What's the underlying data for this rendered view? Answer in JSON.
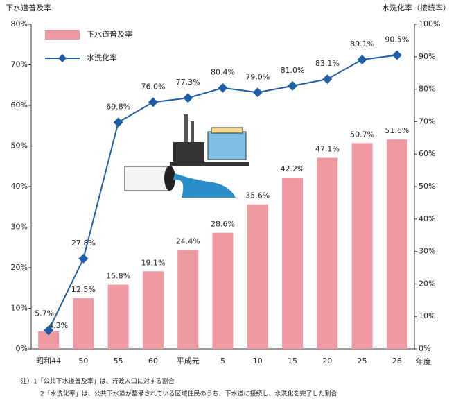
{
  "chart_data": {
    "type": "bar",
    "y_label": "下水道普及率",
    "y2_label": "水洗化率（接続率）",
    "x_label": "年度",
    "categories": [
      "昭和44",
      "50",
      "55",
      "60",
      "平成元",
      "5",
      "10",
      "15",
      "20",
      "25",
      "26"
    ],
    "series": [
      {
        "name": "下水道普及率",
        "type": "bar",
        "color": "#ef9aa2",
        "values": [
          4.3,
          12.5,
          15.8,
          19.1,
          24.4,
          28.6,
          35.6,
          42.2,
          47.1,
          50.7,
          51.6
        ],
        "value_labels": [
          "4.3%",
          "12.5%",
          "15.8%",
          "19.1%",
          "24.4%",
          "28.6%",
          "35.6%",
          "42.2%",
          "47.1%",
          "50.7%",
          "51.6%"
        ]
      },
      {
        "name": "水洗化率",
        "type": "line",
        "axis": "y2",
        "color": "#1f5fa8",
        "values": [
          5.7,
          27.8,
          69.8,
          76.0,
          77.3,
          80.4,
          79.0,
          81.0,
          83.1,
          89.1,
          90.5
        ],
        "value_labels": [
          "5.7%",
          "27.8%",
          "69.8%",
          "76.0%",
          "77.3%",
          "80.4%",
          "79.0%",
          "81.0%",
          "83.1%",
          "89.1%",
          "90.5%"
        ]
      }
    ],
    "ylim": [
      0,
      80
    ],
    "yticks": [
      {
        "value": 0,
        "label": "0%"
      },
      {
        "value": 10,
        "label": "10%"
      },
      {
        "value": 20,
        "label": "20%"
      },
      {
        "value": 30,
        "label": "30%"
      },
      {
        "value": 40,
        "label": "40%"
      },
      {
        "value": 50,
        "label": "50%"
      },
      {
        "value": 60,
        "label": "60%"
      },
      {
        "value": 70,
        "label": "70%"
      },
      {
        "value": 80,
        "label": "80%"
      }
    ],
    "y2lim": [
      0,
      100
    ],
    "y2ticks": [
      {
        "value": 0,
        "label": "0%"
      },
      {
        "value": 10,
        "label": "10%"
      },
      {
        "value": 20,
        "label": "20%"
      },
      {
        "value": 30,
        "label": "30%"
      },
      {
        "value": 40,
        "label": "40%"
      },
      {
        "value": 50,
        "label": "50%"
      },
      {
        "value": 60,
        "label": "60%"
      },
      {
        "value": 70,
        "label": "70%"
      },
      {
        "value": 80,
        "label": "80%"
      },
      {
        "value": 90,
        "label": "90%"
      },
      {
        "value": 100,
        "label": "100%"
      }
    ],
    "grid": false,
    "legend": "top-left",
    "notes": [
      "注）1「公共下水道普及率」は、行政人口に対する割合",
      "2「水洗化率」は、公共下水道が整備されている区域住民のうち、下水道に接続し、水洗化を完了した割合"
    ]
  }
}
